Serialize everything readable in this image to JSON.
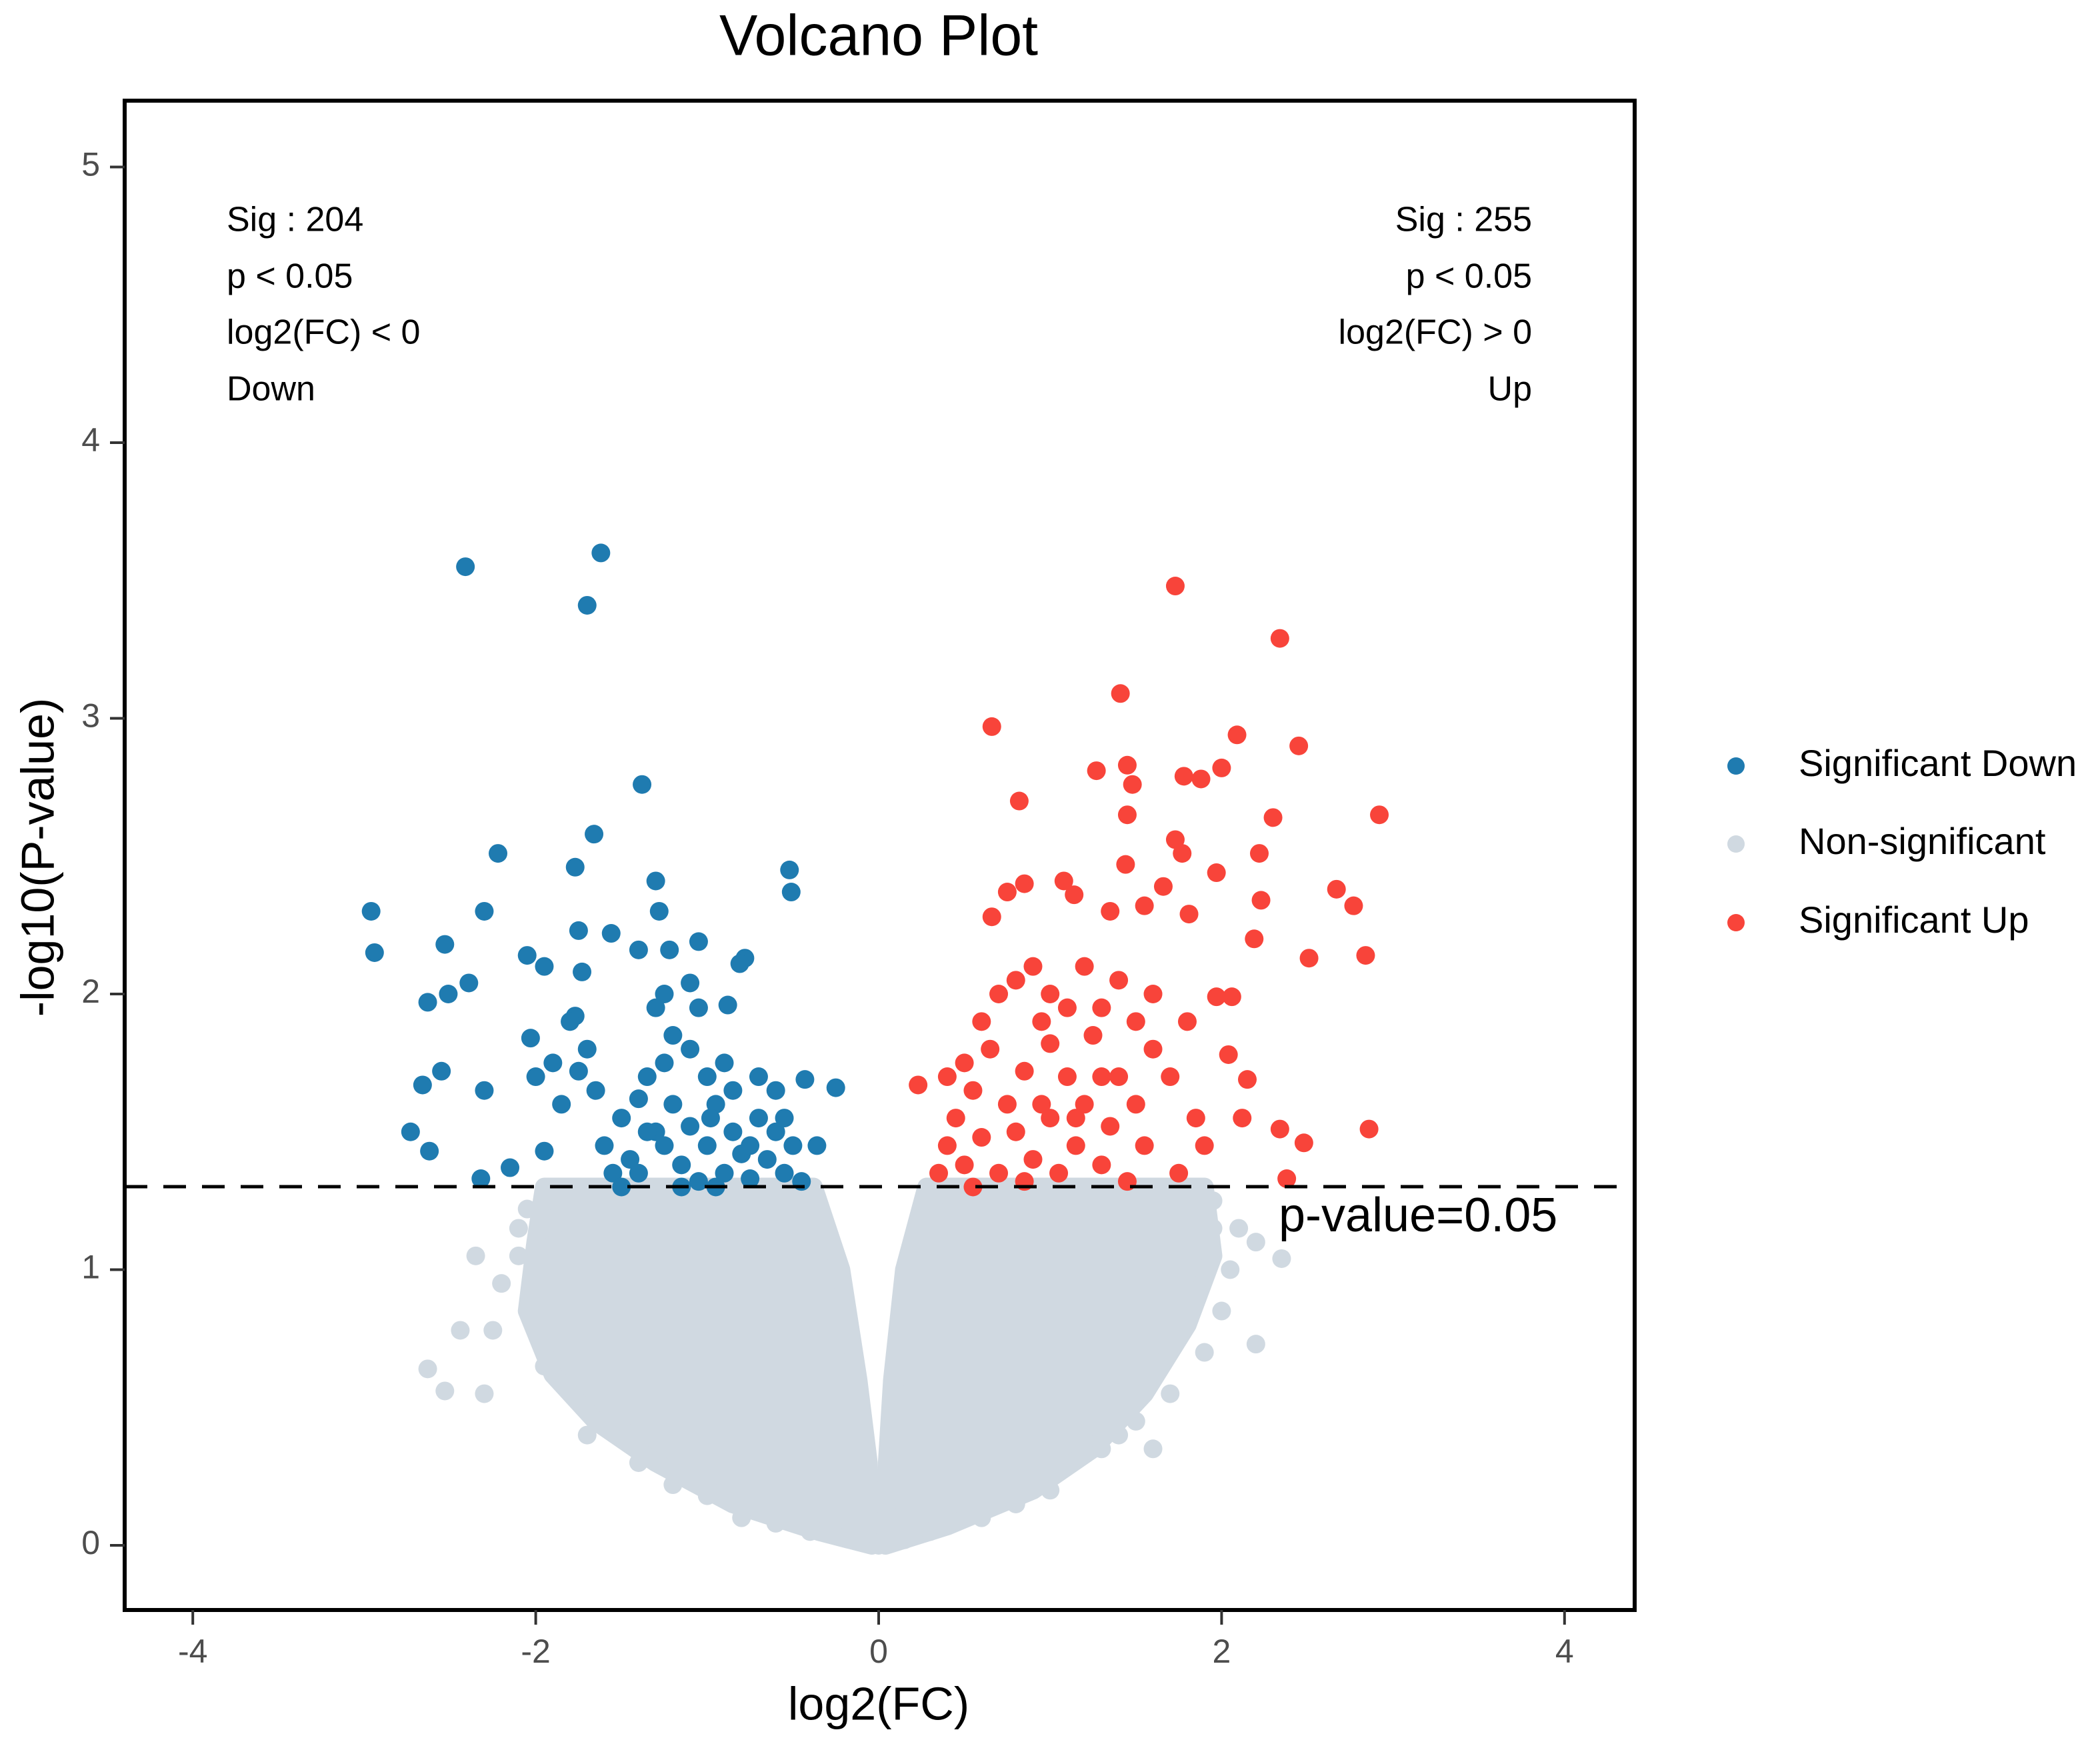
{
  "chart_data": {
    "type": "scatter",
    "title": "Volcano Plot",
    "xlabel": "log2(FC)",
    "ylabel": "-log10(P-value)",
    "xlim": [
      -4.4,
      4.4
    ],
    "ylim": [
      -0.23,
      5.25
    ],
    "x_ticks": [
      -4,
      -2,
      0,
      2,
      4
    ],
    "x_tick_labels": [
      "-4",
      "-2",
      "0",
      "2",
      "4"
    ],
    "y_ticks": [
      0,
      1,
      2,
      3,
      4,
      5
    ],
    "y_tick_labels": [
      "0",
      "1",
      "2",
      "3",
      "4",
      "5"
    ],
    "grid": false,
    "legend_position": "right",
    "threshold": {
      "y": 1.301,
      "label": "p-value=0.05",
      "style": "dashed"
    },
    "annotations": {
      "left": [
        "Sig : 204",
        "p < 0.05",
        "log2(FC) < 0",
        "Down"
      ],
      "right": [
        "Sig : 255",
        "p < 0.05",
        "log2(FC) > 0",
        "Up"
      ]
    },
    "series": [
      {
        "name": "Significant Down",
        "color": "#1f7bb0",
        "points": [
          [
            -2.41,
            3.55
          ],
          [
            -1.62,
            3.6
          ],
          [
            -1.7,
            3.41
          ],
          [
            -1.38,
            2.76
          ],
          [
            -2.96,
            2.3
          ],
          [
            -2.94,
            2.15
          ],
          [
            -2.22,
            2.51
          ],
          [
            -2.3,
            2.3
          ],
          [
            -2.53,
            2.18
          ],
          [
            -2.39,
            2.04
          ],
          [
            -2.51,
            2.0
          ],
          [
            -1.66,
            2.58
          ],
          [
            -1.77,
            2.46
          ],
          [
            -1.3,
            2.41
          ],
          [
            -1.28,
            2.3
          ],
          [
            -1.56,
            2.22
          ],
          [
            -1.75,
            2.23
          ],
          [
            -0.52,
            2.45
          ],
          [
            -0.51,
            2.37
          ],
          [
            -1.05,
            2.19
          ],
          [
            -1.22,
            2.16
          ],
          [
            -1.4,
            2.16
          ],
          [
            -0.78,
            2.13
          ],
          [
            -0.81,
            2.11
          ],
          [
            -2.05,
            2.14
          ],
          [
            -1.95,
            2.1
          ],
          [
            -1.73,
            2.08
          ],
          [
            -2.63,
            1.97
          ],
          [
            -1.1,
            2.04
          ],
          [
            -0.88,
            1.96
          ],
          [
            -2.03,
            1.84
          ],
          [
            -1.77,
            1.92
          ],
          [
            -2.55,
            1.72
          ],
          [
            -2.66,
            1.67
          ],
          [
            -2.3,
            1.65
          ],
          [
            -2.73,
            1.5
          ],
          [
            -2.62,
            1.43
          ],
          [
            -2.32,
            1.33
          ],
          [
            -2.15,
            1.37
          ],
          [
            -1.95,
            1.43
          ],
          [
            -0.43,
            1.69
          ],
          [
            -0.25,
            1.66
          ],
          [
            -0.36,
            1.45
          ],
          [
            -1.5,
            1.55
          ],
          [
            -1.45,
            1.4
          ],
          [
            -1.4,
            1.35
          ],
          [
            -1.3,
            1.5
          ],
          [
            -1.25,
            1.45
          ],
          [
            -1.2,
            1.6
          ],
          [
            -1.15,
            1.38
          ],
          [
            -1.1,
            1.52
          ],
          [
            -1.05,
            1.32
          ],
          [
            -1.0,
            1.45
          ],
          [
            -0.95,
            1.6
          ],
          [
            -0.9,
            1.35
          ],
          [
            -0.85,
            1.5
          ],
          [
            -0.8,
            1.42
          ],
          [
            -0.75,
            1.33
          ],
          [
            -0.7,
            1.55
          ],
          [
            -0.65,
            1.4
          ],
          [
            -0.6,
            1.5
          ],
          [
            -0.55,
            1.35
          ],
          [
            -0.5,
            1.45
          ],
          [
            -0.45,
            1.32
          ],
          [
            -1.6,
            1.45
          ],
          [
            -1.55,
            1.35
          ],
          [
            -1.65,
            1.65
          ],
          [
            -1.7,
            1.8
          ],
          [
            -1.35,
            1.7
          ],
          [
            -1.25,
            1.75
          ],
          [
            -1.2,
            1.85
          ],
          [
            -1.1,
            1.8
          ],
          [
            -1.0,
            1.7
          ],
          [
            -0.9,
            1.75
          ],
          [
            -0.85,
            1.65
          ],
          [
            -0.7,
            1.7
          ],
          [
            -0.6,
            1.65
          ],
          [
            -1.3,
            1.95
          ],
          [
            -1.25,
            2.0
          ],
          [
            -1.4,
            1.62
          ],
          [
            -1.05,
            1.95
          ],
          [
            -1.75,
            1.72
          ],
          [
            -1.85,
            1.6
          ],
          [
            -1.9,
            1.75
          ],
          [
            -2.0,
            1.7
          ],
          [
            -1.8,
            1.9
          ],
          [
            -1.15,
            1.3
          ],
          [
            -0.95,
            1.3
          ],
          [
            -0.75,
            1.45
          ],
          [
            -0.55,
            1.55
          ],
          [
            -1.5,
            1.3
          ],
          [
            -1.35,
            1.5
          ],
          [
            -0.98,
            1.55
          ]
        ]
      },
      {
        "name": "Non-significant",
        "color": "#d0d9e1",
        "dense_region_left": [
          [
            -0.04,
            0.0
          ],
          [
            -0.35,
            0.05
          ],
          [
            -0.85,
            0.15
          ],
          [
            -1.3,
            0.3
          ],
          [
            -1.65,
            0.45
          ],
          [
            -1.9,
            0.62
          ],
          [
            -2.05,
            0.85
          ],
          [
            -2.0,
            1.1
          ],
          [
            -1.95,
            1.3
          ],
          [
            -0.38,
            1.3
          ],
          [
            -0.22,
            1.0
          ],
          [
            -0.12,
            0.6
          ],
          [
            -0.06,
            0.3
          ]
        ],
        "dense_region_right": [
          [
            0.04,
            0.0
          ],
          [
            0.4,
            0.07
          ],
          [
            0.9,
            0.2
          ],
          [
            1.25,
            0.35
          ],
          [
            1.55,
            0.55
          ],
          [
            1.8,
            0.8
          ],
          [
            1.95,
            1.05
          ],
          [
            1.9,
            1.3
          ],
          [
            0.28,
            1.3
          ],
          [
            0.15,
            1.0
          ],
          [
            0.08,
            0.6
          ],
          [
            0.05,
            0.3
          ]
        ],
        "points": [
          [
            -2.63,
            0.64
          ],
          [
            -2.53,
            0.56
          ],
          [
            -2.44,
            0.78
          ],
          [
            -2.3,
            0.55
          ],
          [
            -2.25,
            0.78
          ],
          [
            -2.2,
            0.95
          ],
          [
            -2.1,
            1.05
          ],
          [
            -2.35,
            1.05
          ],
          [
            -2.05,
            1.22
          ],
          [
            -1.9,
            1.15
          ],
          [
            -1.8,
            0.7
          ],
          [
            -1.7,
            0.4
          ],
          [
            -1.5,
            0.45
          ],
          [
            -1.95,
            0.65
          ],
          [
            -2.0,
            0.9
          ],
          [
            -1.6,
            0.55
          ],
          [
            -1.4,
            0.3
          ],
          [
            -1.2,
            0.22
          ],
          [
            -1.0,
            0.18
          ],
          [
            -0.8,
            0.1
          ],
          [
            -0.6,
            0.08
          ],
          [
            -0.4,
            0.05
          ],
          [
            -0.2,
            0.03
          ],
          [
            -0.1,
            0.3
          ],
          [
            -0.15,
            0.45
          ],
          [
            -0.25,
            0.8
          ],
          [
            -0.3,
            1.1
          ],
          [
            -0.45,
            1.25
          ],
          [
            -1.9,
            1.28
          ],
          [
            -2.1,
            1.15
          ],
          [
            2.1,
            1.15
          ],
          [
            2.2,
            1.1
          ],
          [
            2.35,
            1.04
          ],
          [
            2.2,
            0.73
          ],
          [
            1.95,
            1.15
          ],
          [
            1.85,
            0.9
          ],
          [
            1.75,
            0.8
          ],
          [
            1.5,
            0.45
          ],
          [
            1.4,
            0.4
          ],
          [
            1.3,
            0.35
          ],
          [
            1.2,
            0.6
          ],
          [
            2.0,
            0.85
          ],
          [
            1.9,
            0.7
          ],
          [
            1.7,
            0.55
          ],
          [
            1.0,
            0.2
          ],
          [
            0.8,
            0.15
          ],
          [
            0.6,
            0.1
          ],
          [
            0.3,
            0.05
          ],
          [
            0.15,
            0.02
          ],
          [
            0.1,
            0.35
          ],
          [
            0.12,
            0.55
          ],
          [
            0.2,
            0.9
          ],
          [
            0.25,
            1.15
          ],
          [
            0.35,
            1.27
          ],
          [
            1.95,
            1.25
          ],
          [
            2.05,
            1.0
          ],
          [
            0.0,
            0.0
          ],
          [
            0.02,
            0.1
          ],
          [
            -0.03,
            0.15
          ],
          [
            1.6,
            0.35
          ]
        ]
      },
      {
        "name": "Significant Up",
        "color": "#f8443a",
        "points": [
          [
            1.73,
            3.48
          ],
          [
            2.34,
            3.29
          ],
          [
            1.41,
            3.09
          ],
          [
            0.66,
            2.97
          ],
          [
            2.09,
            2.94
          ],
          [
            2.45,
            2.9
          ],
          [
            2.92,
            2.65
          ],
          [
            0.82,
            2.7
          ],
          [
            1.27,
            2.81
          ],
          [
            1.45,
            2.83
          ],
          [
            1.78,
            2.79
          ],
          [
            1.88,
            2.78
          ],
          [
            2.0,
            2.82
          ],
          [
            1.48,
            2.76
          ],
          [
            2.3,
            2.64
          ],
          [
            1.45,
            2.65
          ],
          [
            1.73,
            2.56
          ],
          [
            1.77,
            2.51
          ],
          [
            2.22,
            2.51
          ],
          [
            1.44,
            2.47
          ],
          [
            1.97,
            2.44
          ],
          [
            0.85,
            2.4
          ],
          [
            1.08,
            2.41
          ],
          [
            2.67,
            2.38
          ],
          [
            2.77,
            2.32
          ],
          [
            2.23,
            2.34
          ],
          [
            1.66,
            2.39
          ],
          [
            0.75,
            2.37
          ],
          [
            1.14,
            2.36
          ],
          [
            1.35,
            2.3
          ],
          [
            0.66,
            2.28
          ],
          [
            1.55,
            2.32
          ],
          [
            1.81,
            2.29
          ],
          [
            2.19,
            2.2
          ],
          [
            2.51,
            2.13
          ],
          [
            2.84,
            2.14
          ],
          [
            2.86,
            1.51
          ],
          [
            2.48,
            1.46
          ],
          [
            2.34,
            1.51
          ],
          [
            2.38,
            1.33
          ],
          [
            2.12,
            1.55
          ],
          [
            2.15,
            1.69
          ],
          [
            2.04,
            1.78
          ],
          [
            1.97,
            1.99
          ],
          [
            2.06,
            1.99
          ],
          [
            0.23,
            1.67
          ],
          [
            0.35,
            1.35
          ],
          [
            0.4,
            1.45
          ],
          [
            0.45,
            1.55
          ],
          [
            0.5,
            1.38
          ],
          [
            0.55,
            1.65
          ],
          [
            0.6,
            1.48
          ],
          [
            0.65,
            1.8
          ],
          [
            0.7,
            1.35
          ],
          [
            0.75,
            1.6
          ],
          [
            0.8,
            1.5
          ],
          [
            0.85,
            1.72
          ],
          [
            0.9,
            1.4
          ],
          [
            0.95,
            1.9
          ],
          [
            1.0,
            1.55
          ],
          [
            1.05,
            1.35
          ],
          [
            1.1,
            1.7
          ],
          [
            1.15,
            1.45
          ],
          [
            1.2,
            1.6
          ],
          [
            1.25,
            1.85
          ],
          [
            1.3,
            1.38
          ],
          [
            1.35,
            1.52
          ],
          [
            1.4,
            1.7
          ],
          [
            1.45,
            1.32
          ],
          [
            1.5,
            1.6
          ],
          [
            1.55,
            1.45
          ],
          [
            1.6,
            1.8
          ],
          [
            0.5,
            1.75
          ],
          [
            0.6,
            1.9
          ],
          [
            0.7,
            2.0
          ],
          [
            0.8,
            2.05
          ],
          [
            0.9,
            2.1
          ],
          [
            1.0,
            2.0
          ],
          [
            1.1,
            1.95
          ],
          [
            1.2,
            2.1
          ],
          [
            1.3,
            1.95
          ],
          [
            1.4,
            2.05
          ],
          [
            1.5,
            1.9
          ],
          [
            1.6,
            2.0
          ],
          [
            1.7,
            1.7
          ],
          [
            1.75,
            1.35
          ],
          [
            1.8,
            1.9
          ],
          [
            1.85,
            1.55
          ],
          [
            1.9,
            1.45
          ],
          [
            0.4,
            1.7
          ],
          [
            0.55,
            1.3
          ],
          [
            0.85,
            1.32
          ],
          [
            1.0,
            1.82
          ],
          [
            1.3,
            1.7
          ],
          [
            0.95,
            1.6
          ],
          [
            1.15,
            1.55
          ]
        ]
      }
    ]
  }
}
